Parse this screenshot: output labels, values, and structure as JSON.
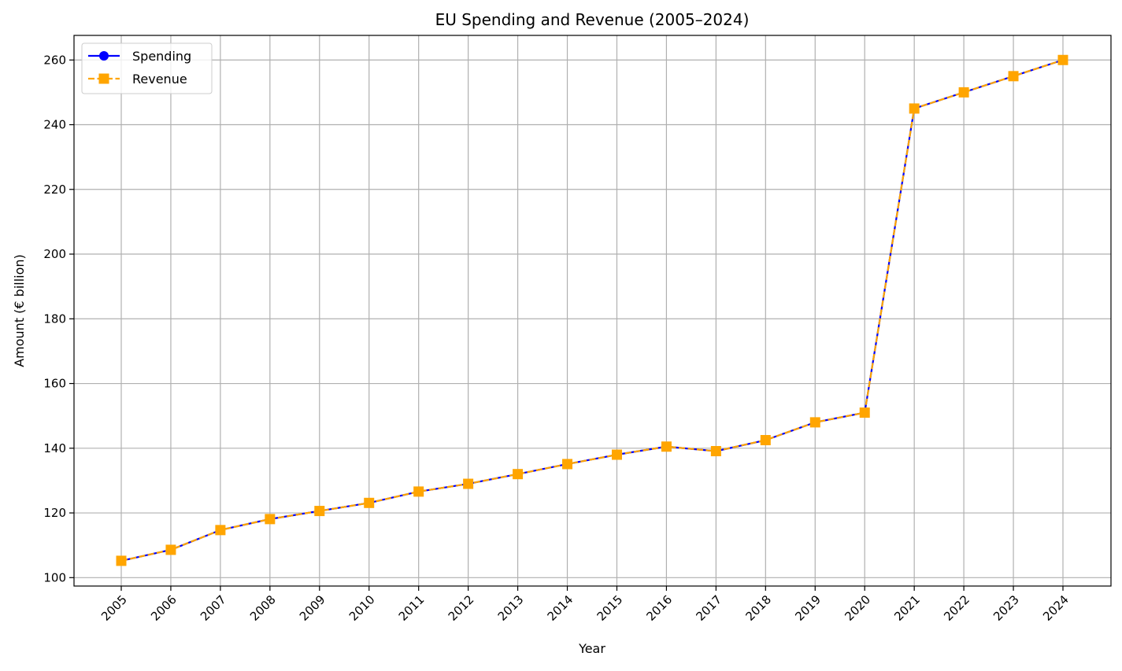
{
  "chart_data": {
    "type": "line",
    "title": "EU Spending and Revenue (2005–2024)",
    "xlabel": "Year",
    "ylabel": "Amount (€ billion)",
    "categories": [
      "2005",
      "2006",
      "2007",
      "2008",
      "2009",
      "2010",
      "2011",
      "2012",
      "2013",
      "2014",
      "2015",
      "2016",
      "2017",
      "2018",
      "2019",
      "2020",
      "2021",
      "2022",
      "2023",
      "2024"
    ],
    "ylim": [
      97.4,
      267.6
    ],
    "yticks": [
      100,
      120,
      140,
      160,
      180,
      200,
      220,
      240,
      260
    ],
    "grid": true,
    "legend_position": "top-left",
    "series": [
      {
        "name": "Spending",
        "color": "#0000ff",
        "marker": "circle",
        "linestyle": "solid",
        "values": [
          105.2,
          108.6,
          114.7,
          118.1,
          120.6,
          123.1,
          126.6,
          129.0,
          132.0,
          135.1,
          138.0,
          140.5,
          139.1,
          142.5,
          148.0,
          151.0,
          245.0,
          250.0,
          255.0,
          260.0
        ]
      },
      {
        "name": "Revenue",
        "color": "#ffa500",
        "marker": "square",
        "linestyle": "dashed",
        "values": [
          105.2,
          108.6,
          114.7,
          118.1,
          120.6,
          123.1,
          126.6,
          129.0,
          132.0,
          135.1,
          138.0,
          140.5,
          139.1,
          142.5,
          148.0,
          151.0,
          245.0,
          250.0,
          255.0,
          260.0
        ]
      }
    ]
  }
}
